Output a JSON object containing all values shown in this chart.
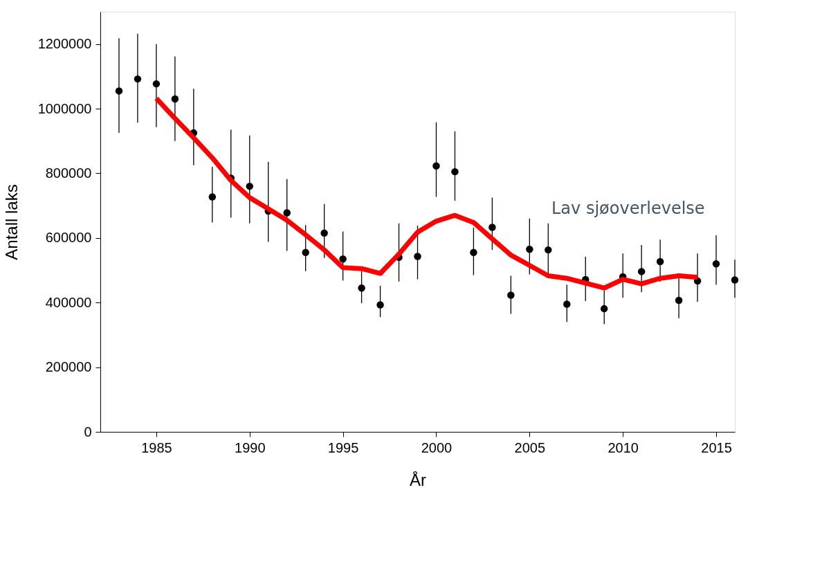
{
  "chart_data": {
    "type": "scatter",
    "xlabel": "År",
    "ylabel": "Antall laks",
    "x": [
      1983,
      1984,
      1985,
      1986,
      1987,
      1988,
      1989,
      1990,
      1991,
      1992,
      1993,
      1994,
      1995,
      1996,
      1997,
      1998,
      1999,
      2000,
      2001,
      2002,
      2003,
      2004,
      2005,
      2006,
      2007,
      2008,
      2009,
      2010,
      2011,
      2012,
      2013,
      2014,
      2015,
      2016
    ],
    "series": [
      {
        "color": "#000000",
        "marker": "circle",
        "values": [
          1055000,
          1092000,
          1077000,
          1030000,
          925000,
          727000,
          785000,
          760000,
          683000,
          678000,
          555000,
          615000,
          535000,
          445000,
          393000,
          540000,
          543000,
          823000,
          805000,
          555000,
          633000,
          423000,
          565000,
          563000,
          395000,
          471000,
          381000,
          480000,
          496000,
          527000,
          407000,
          467000,
          520000,
          470000
        ],
        "errors": [
          [
            925000,
            1218000
          ],
          [
            957000,
            1232000
          ],
          [
            943000,
            1200000
          ],
          [
            900000,
            1162000
          ],
          [
            825000,
            1062000
          ],
          [
            648000,
            820000
          ],
          [
            663000,
            935000
          ],
          [
            645000,
            917000
          ],
          [
            588000,
            835000
          ],
          [
            560000,
            782000
          ],
          [
            497000,
            640000
          ],
          [
            538000,
            705000
          ],
          [
            468000,
            620000
          ],
          [
            398000,
            508000
          ],
          [
            355000,
            452000
          ],
          [
            465000,
            645000
          ],
          [
            472000,
            638000
          ],
          [
            727000,
            958000
          ],
          [
            715000,
            930000
          ],
          [
            485000,
            632000
          ],
          [
            563000,
            725000
          ],
          [
            365000,
            483000
          ],
          [
            487000,
            660000
          ],
          [
            487000,
            645000
          ],
          [
            340000,
            455000
          ],
          [
            405000,
            542000
          ],
          [
            333000,
            437000
          ],
          [
            415000,
            552000
          ],
          [
            432000,
            578000
          ],
          [
            465000,
            595000
          ],
          [
            352000,
            478000
          ],
          [
            402000,
            552000
          ],
          [
            455000,
            608000
          ],
          [
            415000,
            533000
          ]
        ]
      },
      {
        "type": "line",
        "color": "#ff0000",
        "line_style": "solid",
        "marker": "none",
        "x": [
          1985,
          1986,
          1987,
          1988,
          1989,
          1990,
          1991,
          1992,
          1993,
          1994,
          1995,
          1996,
          1997,
          1998,
          1999,
          2000,
          2001,
          2002,
          2003,
          2004,
          2005,
          2006,
          2007,
          2008,
          2009,
          2010,
          2011,
          2012,
          2013,
          2014
        ],
        "values": [
          1032000,
          970000,
          910000,
          848000,
          778000,
          725000,
          690000,
          655000,
          610000,
          563000,
          508000,
          505000,
          490000,
          550000,
          618000,
          652000,
          670000,
          648000,
          597000,
          547000,
          515000,
          483000,
          475000,
          460000,
          445000,
          472000,
          458000,
          475000,
          483000,
          478000
        ]
      }
    ],
    "xlim": [
      1982,
      2016
    ],
    "xticks": [
      1985,
      1990,
      1995,
      2000,
      2005,
      2010,
      2015
    ],
    "ylim": [
      0,
      1300000
    ],
    "yticks": [
      0,
      200000,
      400000,
      600000,
      800000,
      1000000,
      1200000
    ],
    "grid": false,
    "annotations": [
      "Lav sjøoverlevelse"
    ]
  }
}
